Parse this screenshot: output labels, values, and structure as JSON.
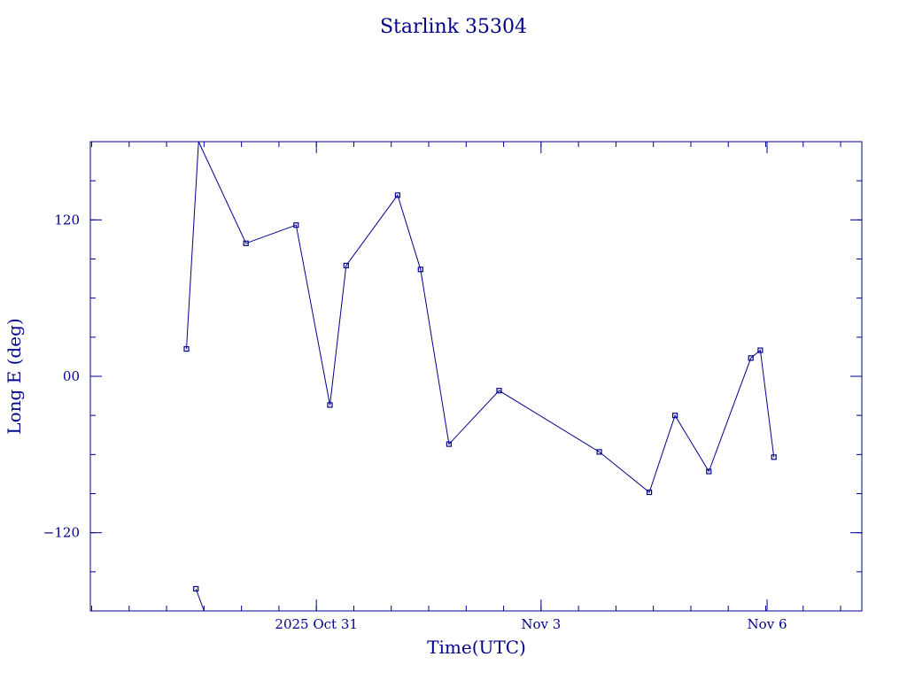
{
  "chart_data": {
    "type": "line",
    "title": "Starlink 35304",
    "xlabel": "Time(UTC)",
    "ylabel": "Long E (deg)",
    "xlim": [
      28.1,
      33.8
    ],
    "ylim": [
      -180,
      180
    ],
    "x_axis_ticks": [
      {
        "value": 29.77,
        "label": "2025 Oct 31"
      },
      {
        "value": 31.43,
        "label": "Nov  3"
      },
      {
        "value": 33.1,
        "label": "Nov  6"
      }
    ],
    "y_axis_ticks": [
      {
        "value": 120,
        "label": "120"
      },
      {
        "value": 0,
        "label": "00"
      },
      {
        "value": -120,
        "label": "−120"
      }
    ],
    "color": "#00008b",
    "grid": false,
    "segments": [
      [
        {
          "x": 28.81,
          "y": 21
        },
        {
          "x": 28.9,
          "y": 180
        }
      ],
      [
        {
          "x": 28.9,
          "y": 180
        },
        {
          "x": 29.25,
          "y": 102
        },
        {
          "x": 29.62,
          "y": 116
        },
        {
          "x": 29.87,
          "y": -22
        },
        {
          "x": 29.99,
          "y": 85
        },
        {
          "x": 30.37,
          "y": 139
        },
        {
          "x": 30.54,
          "y": 82
        },
        {
          "x": 30.75,
          "y": -52
        },
        {
          "x": 31.12,
          "y": -11
        },
        {
          "x": 31.86,
          "y": -58
        },
        {
          "x": 32.23,
          "y": -89
        },
        {
          "x": 32.42,
          "y": -30
        },
        {
          "x": 32.67,
          "y": -73
        },
        {
          "x": 32.98,
          "y": 14
        },
        {
          "x": 33.05,
          "y": 20
        },
        {
          "x": 33.15,
          "y": -62
        }
      ],
      [
        {
          "x": 28.88,
          "y": -163
        },
        {
          "x": 28.94,
          "y": -180
        }
      ]
    ],
    "markers": [
      {
        "x": 28.81,
        "y": 21
      },
      {
        "x": 28.88,
        "y": -163
      },
      {
        "x": 29.25,
        "y": 102
      },
      {
        "x": 29.62,
        "y": 116
      },
      {
        "x": 29.87,
        "y": -22
      },
      {
        "x": 29.99,
        "y": 85
      },
      {
        "x": 30.37,
        "y": 139
      },
      {
        "x": 30.54,
        "y": 82
      },
      {
        "x": 30.75,
        "y": -52
      },
      {
        "x": 31.12,
        "y": -11
      },
      {
        "x": 31.86,
        "y": -58
      },
      {
        "x": 32.23,
        "y": -89
      },
      {
        "x": 32.42,
        "y": -30
      },
      {
        "x": 32.67,
        "y": -73
      },
      {
        "x": 32.98,
        "y": 14
      },
      {
        "x": 33.05,
        "y": 20
      },
      {
        "x": 33.15,
        "y": -62
      }
    ]
  }
}
